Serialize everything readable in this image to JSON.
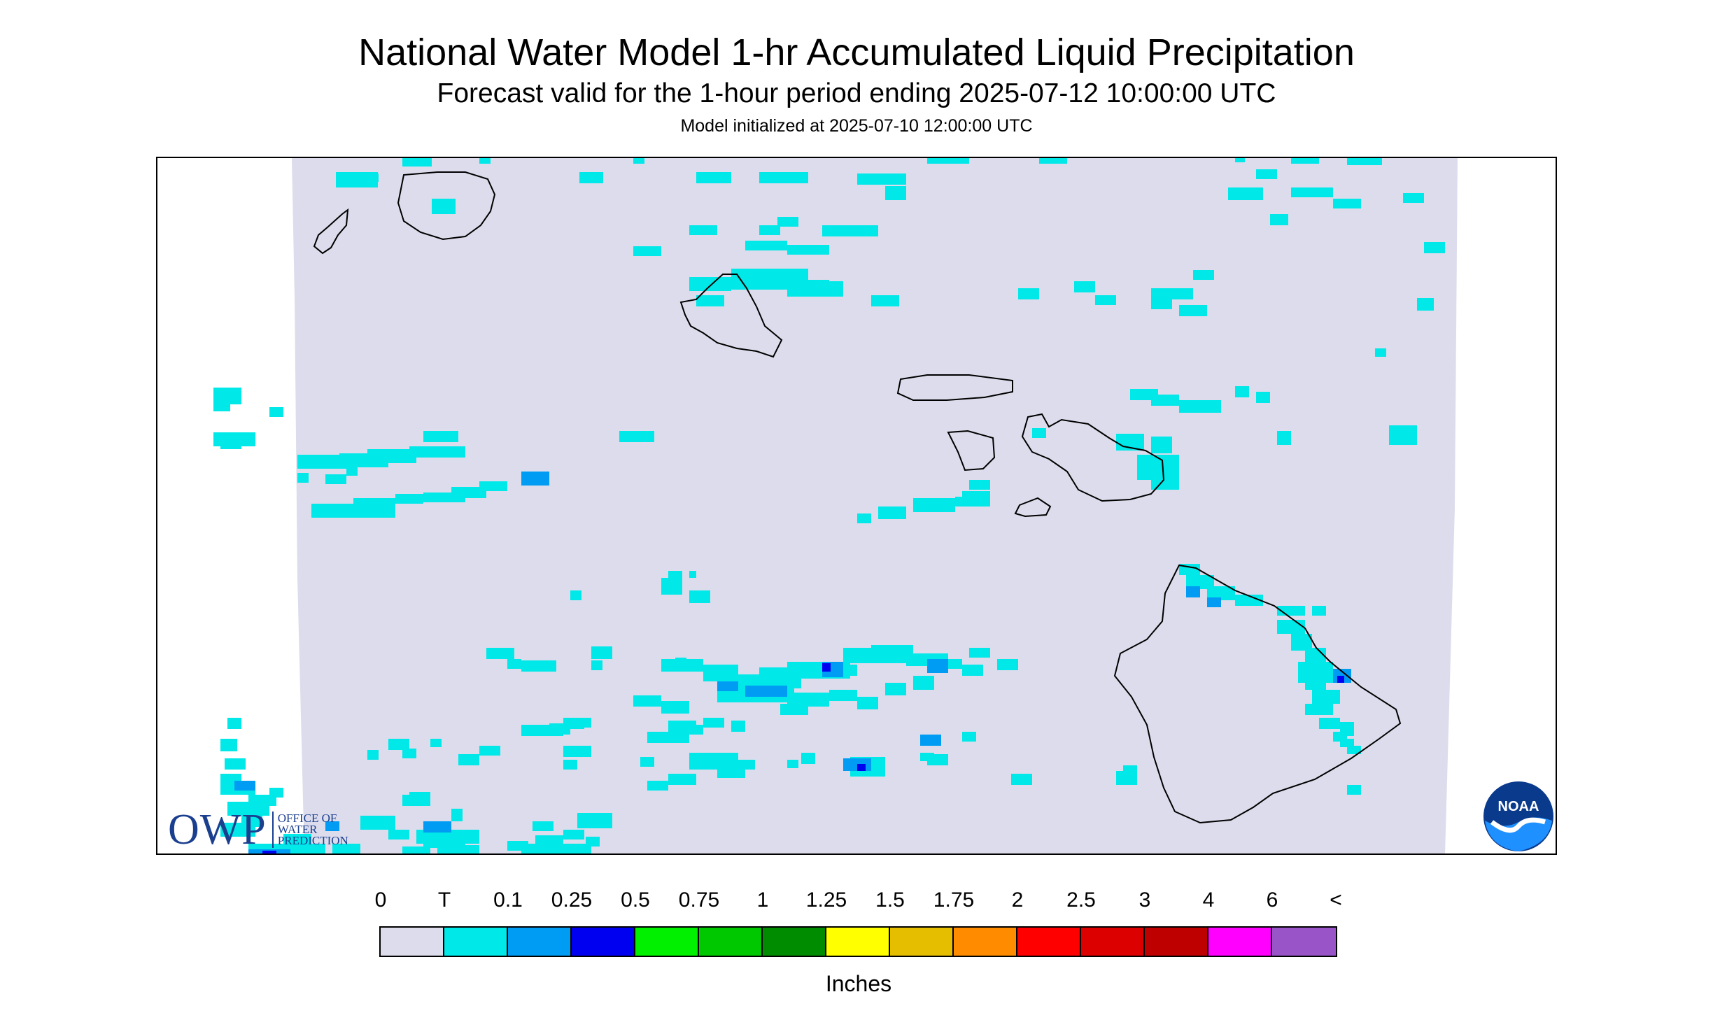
{
  "title": "National Water Model 1-hr Accumulated Liquid Precipitation",
  "subtitle": "Forecast valid for the 1-hour period ending 2025-07-12 10:00:00 UTC",
  "init_line": "Model initialized at 2025-07-10 12:00:00 UTC",
  "logos": {
    "owp_letters": "OWP",
    "owp_lines": [
      "OFFICE OF",
      "WATER",
      "PREDICTION"
    ],
    "noaa_text": "NOAA"
  },
  "colors": {
    "background_land_sea": "#dcdcec",
    "coast": "#000000"
  },
  "legend": {
    "labels": [
      "0",
      "T",
      "0.1",
      "0.25",
      "0.5",
      "0.75",
      "1",
      "1.25",
      "1.5",
      "1.75",
      "2",
      "2.5",
      "3",
      "4",
      "6",
      "<"
    ],
    "colors": [
      "#dcdcec",
      "#00e8e8",
      "#009cf4",
      "#0000f0",
      "#00f000",
      "#00c800",
      "#008c00",
      "#ffff00",
      "#e6be00",
      "#ff8c00",
      "#ff0000",
      "#dc0000",
      "#be0000",
      "#ff00ff",
      "#9955c8"
    ],
    "units": "Inches"
  }
}
